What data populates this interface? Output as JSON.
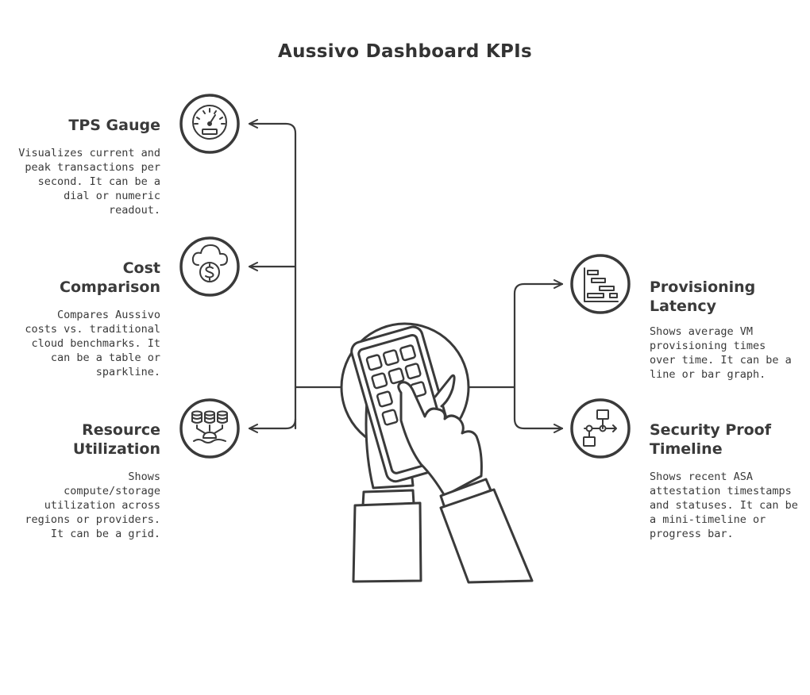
{
  "title": "Aussivo Dashboard KPIs",
  "left": [
    {
      "icon": "gauge-icon",
      "heading": "TPS Gauge",
      "lines": [
        "Visualizes current and",
        "peak transactions per",
        "second.  It can be a",
        "dial or numeric",
        "readout."
      ]
    },
    {
      "icon": "cloud-dollar-icon",
      "heading": "Cost Comparison",
      "heading_lines": [
        "Cost",
        "Comparison"
      ],
      "lines": [
        "Compares Aussivo",
        "costs vs. traditional",
        "cloud benchmarks. It",
        "can be a table or",
        "sparkline."
      ]
    },
    {
      "icon": "database-network-icon",
      "heading": "Resource Utilization",
      "heading_lines": [
        "Resource",
        "Utilization"
      ],
      "lines": [
        "Shows",
        "compute/storage",
        "utilization across",
        "regions or providers.",
        "It can be a grid."
      ]
    }
  ],
  "right": [
    {
      "icon": "gantt-chart-icon",
      "heading": "Provisioning Latency",
      "heading_lines": [
        "Provisioning",
        "Latency"
      ],
      "lines": [
        "Shows average VM",
        "provisioning times",
        "over time. It can be a",
        "line or bar graph."
      ]
    },
    {
      "icon": "flowchart-icon",
      "heading": "Security Proof Timeline",
      "heading_lines": [
        "Security Proof",
        "Timeline"
      ],
      "lines": [
        "Shows recent ASA",
        "attestation timestamps",
        "and statuses. It can be",
        "a mini-timeline or",
        "progress bar."
      ]
    }
  ]
}
